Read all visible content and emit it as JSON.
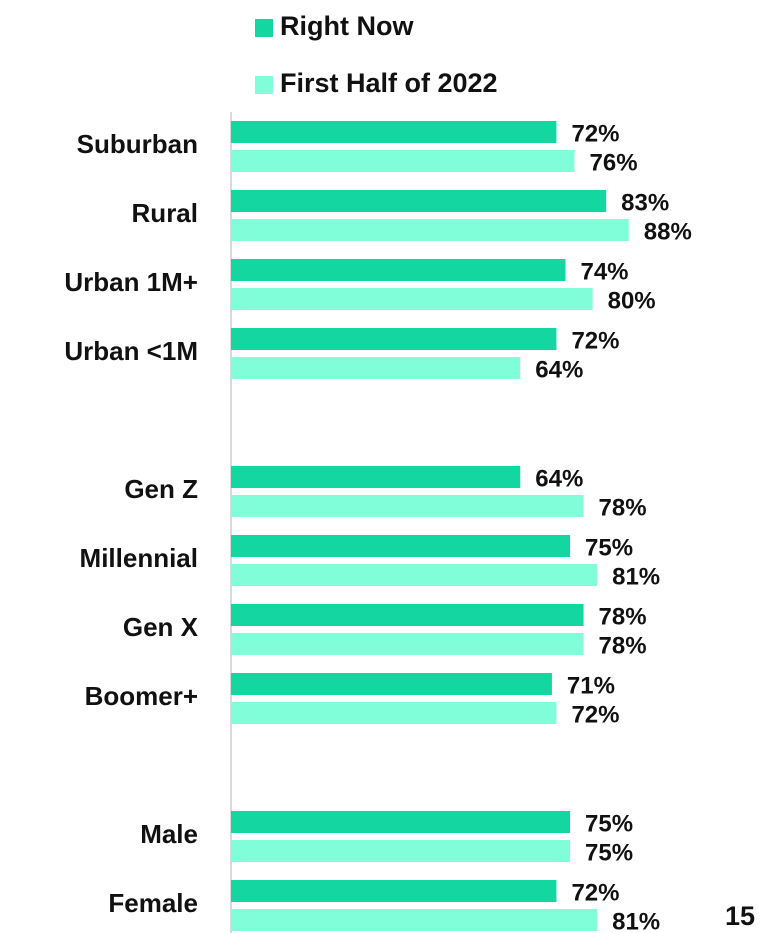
{
  "chart_data": {
    "type": "bar",
    "orientation": "horizontal",
    "categories": [
      "Suburban",
      "Rural",
      "Urban 1M+",
      "Urban <1M",
      null,
      "Gen Z",
      "Millennial",
      "Gen X",
      "Boomer+",
      null,
      "Male",
      "Female"
    ],
    "series": [
      {
        "name": "Right Now",
        "color": "#14d6a0",
        "values": [
          72,
          83,
          74,
          72,
          null,
          64,
          75,
          78,
          71,
          null,
          75,
          72
        ],
        "value_labels": [
          "72%",
          "83%",
          "74%",
          "72%",
          null,
          "64%",
          "75%",
          "78%",
          "71%",
          null,
          "75%",
          "72%"
        ]
      },
      {
        "name": "First Half of 2022",
        "color": "#80fdd9",
        "values": [
          76,
          88,
          80,
          64,
          null,
          78,
          81,
          78,
          72,
          null,
          75,
          81
        ],
        "value_labels": [
          "76%",
          "88%",
          "80%",
          "64%",
          null,
          "78%",
          "81%",
          "78%",
          "72%",
          null,
          "75%",
          "81%"
        ]
      }
    ]
  },
  "page_number": "15"
}
